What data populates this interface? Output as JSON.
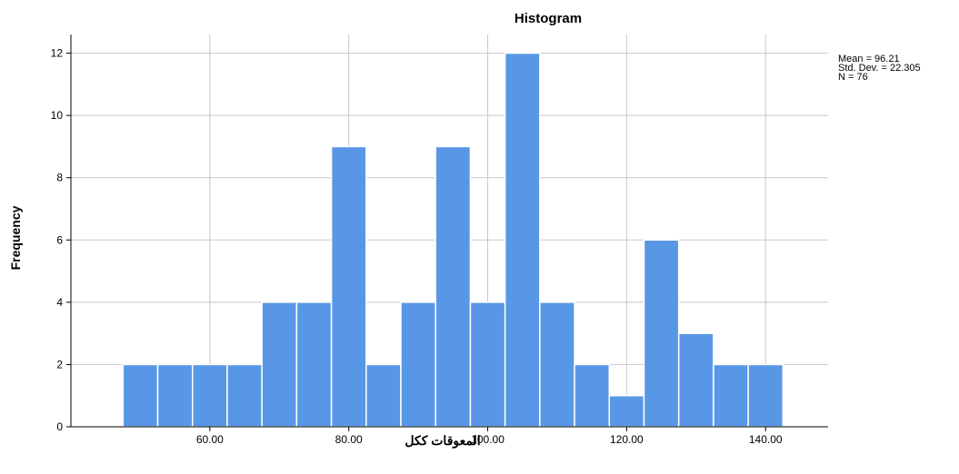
{
  "chart_data": {
    "type": "bar",
    "title": "Histogram",
    "xlabel": "المعوقات ككل",
    "ylabel": "Frequency",
    "bin_width": 5,
    "bins_start": 47.5,
    "values": [
      2,
      2,
      2,
      2,
      4,
      4,
      9,
      2,
      4,
      9,
      4,
      12,
      4,
      2,
      1,
      6,
      3,
      2,
      2
    ],
    "xlim": [
      40,
      149
    ],
    "ylim": [
      0,
      12.6
    ],
    "x_ticks": [
      60,
      80,
      100,
      120,
      140
    ],
    "x_tick_labels": [
      "60.00",
      "80.00",
      "100.00",
      "120.00",
      "140.00"
    ],
    "y_ticks": [
      0,
      2,
      4,
      6,
      8,
      10,
      12
    ],
    "y_tick_labels": [
      "0",
      "2",
      "4",
      "6",
      "8",
      "10",
      "12"
    ],
    "grid": true,
    "stats": {
      "mean": "Mean = 96.21",
      "std": "Std. Dev. = 22.305",
      "n": "N = 76"
    }
  },
  "colors": {
    "bar_fill": "#5897e5",
    "bar_stroke": "#ffffff",
    "grid": "#c8c8c8",
    "axis": "#000000"
  }
}
